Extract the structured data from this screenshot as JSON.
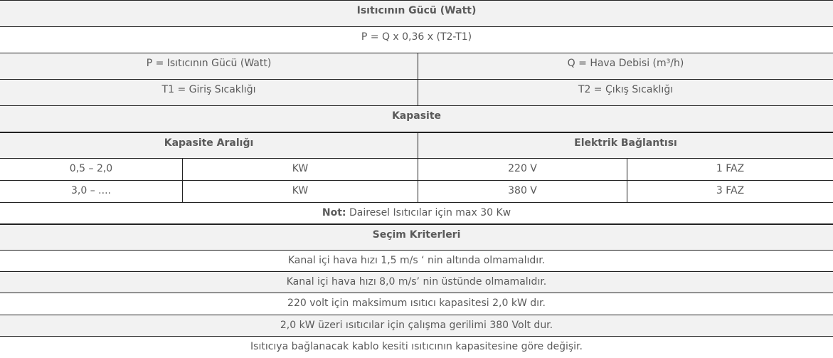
{
  "title": "Isıtıcının Gücü (Watt)",
  "formula": "P = Q x 0,36 x (T2-T1)",
  "legend": [
    [
      "P = Isıtıcının Gücü (Watt)",
      "Q = Hava Debisi (m³/h)"
    ],
    [
      "T1 = Giriş Sıcaklığı",
      "T2 = Çıkış Sıcaklığı"
    ]
  ],
  "capacity": {
    "title": "Kapasite",
    "headers": [
      "Kapasite Aralığı",
      "Elektrik Bağlantısı"
    ],
    "rows": [
      [
        "0,5 – 2,0",
        "KW",
        "220 V",
        "1 FAZ"
      ],
      [
        "3,0 – ....",
        "KW",
        "380 V",
        "3 FAZ"
      ]
    ],
    "note_label": "Not:",
    "note_text": " Dairesel Isıtıcılar için max 30 Kw"
  },
  "criteria": {
    "title": "Seçim Kriterleri",
    "items": [
      "Kanal içi hava hızı 1,5 m/s ‘ nin altında olmamalıdır.",
      "Kanal içi hava hızı 8,0 m/s’ nin üstünde olmamalıdır.",
      "220 volt için maksimum ısıtıcı kapasitesi 2,0 kW dır.",
      "2,0 kW üzeri ısıtıcılar için çalışma gerilimi 380 Volt dur.",
      "Isıtıcıya bağlanacak kablo kesiti ısıtıcının kapasitesine göre değişir."
    ]
  },
  "colors": {
    "header_bg": "#f2f2f2",
    "border": "#222222",
    "text": "#5a5a5a"
  }
}
